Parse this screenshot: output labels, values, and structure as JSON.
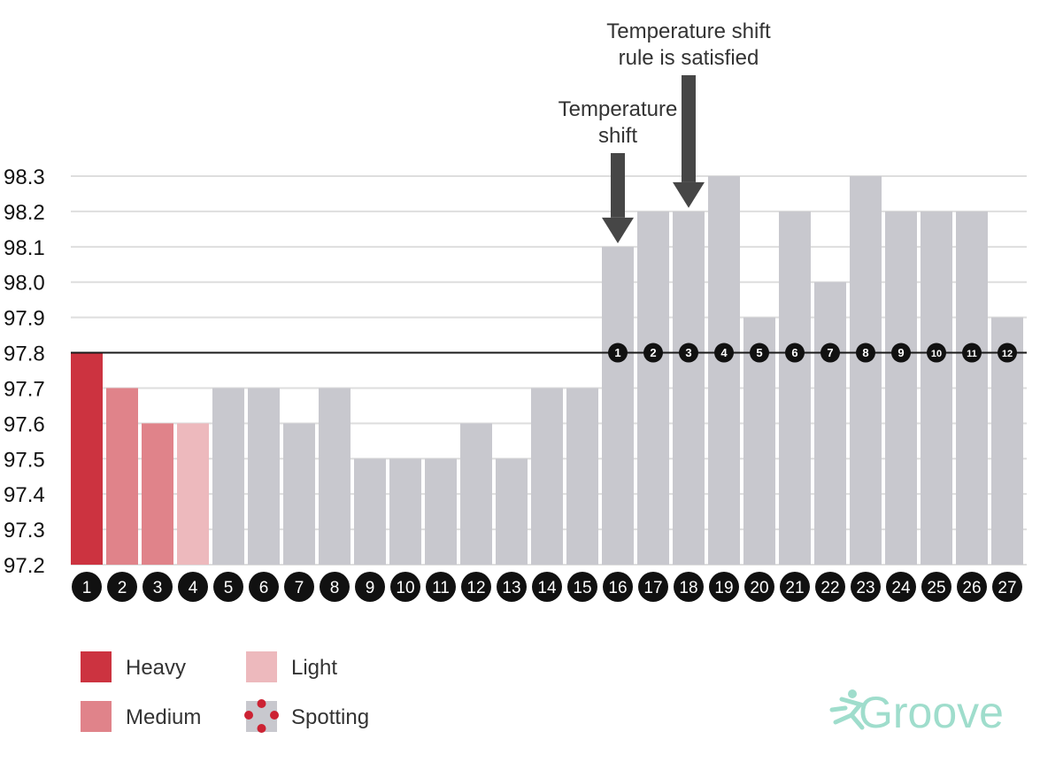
{
  "chart_data": {
    "type": "bar",
    "categories": [
      "1",
      "2",
      "3",
      "4",
      "5",
      "6",
      "7",
      "8",
      "9",
      "10",
      "11",
      "12",
      "13",
      "14",
      "15",
      "16",
      "17",
      "18",
      "19",
      "20",
      "21",
      "22",
      "23",
      "24",
      "25",
      "26",
      "27"
    ],
    "values": [
      97.8,
      97.7,
      97.6,
      97.6,
      97.7,
      97.7,
      97.6,
      97.7,
      97.5,
      97.5,
      97.5,
      97.6,
      97.5,
      97.7,
      97.7,
      98.1,
      98.2,
      98.2,
      98.3,
      97.9,
      98.2,
      98.0,
      98.3,
      98.2,
      98.2,
      98.2,
      97.9
    ],
    "bleeding": [
      "heavy",
      "medium",
      "medium",
      "light",
      "none",
      "none",
      "none",
      "none",
      "none",
      "none",
      "none",
      "none",
      "none",
      "none",
      "none",
      "none",
      "none",
      "none",
      "none",
      "none",
      "none",
      "none",
      "none",
      "none",
      "none",
      "none",
      "none"
    ],
    "ylim": [
      97.2,
      98.3
    ],
    "yticks": [
      "97.2",
      "97.3",
      "97.4",
      "97.5",
      "97.6",
      "97.7",
      "97.8",
      "97.9",
      "98.0",
      "98.1",
      "98.2",
      "98.3"
    ],
    "grid": true,
    "title": "",
    "xlabel": "",
    "ylabel": "",
    "coverline": 97.8,
    "high_temp_markers": {
      "start_day": 16,
      "labels": [
        "1",
        "2",
        "3",
        "4",
        "5",
        "6",
        "7",
        "8",
        "9",
        "10",
        "11",
        "12"
      ]
    },
    "annotations": [
      {
        "text_lines": [
          "Temperature",
          "shift"
        ],
        "day": 16
      },
      {
        "text_lines": [
          "Temperature shift",
          "rule is satisfied"
        ],
        "day": 18
      }
    ],
    "colors": {
      "heavy": "#cc3340",
      "medium": "#e0838a",
      "light": "#edb9bd",
      "none": "#c8c8ce",
      "grid": "#dedede",
      "coverline": "#1a1a1a",
      "arrow": "#464646",
      "text": "#333333",
      "circle": "#111111"
    }
  },
  "legend": {
    "items": [
      {
        "key": "heavy",
        "label": "Heavy",
        "color": "#cc3340"
      },
      {
        "key": "medium",
        "label": "Medium",
        "color": "#e0838a"
      },
      {
        "key": "light",
        "label": "Light",
        "color": "#edb9bd"
      },
      {
        "key": "spotting",
        "label": "Spotting",
        "color": "#c8c8ce",
        "dot_color": "#cc2233"
      }
    ]
  },
  "brand": {
    "name": "Groove",
    "color": "#9fddcc"
  }
}
